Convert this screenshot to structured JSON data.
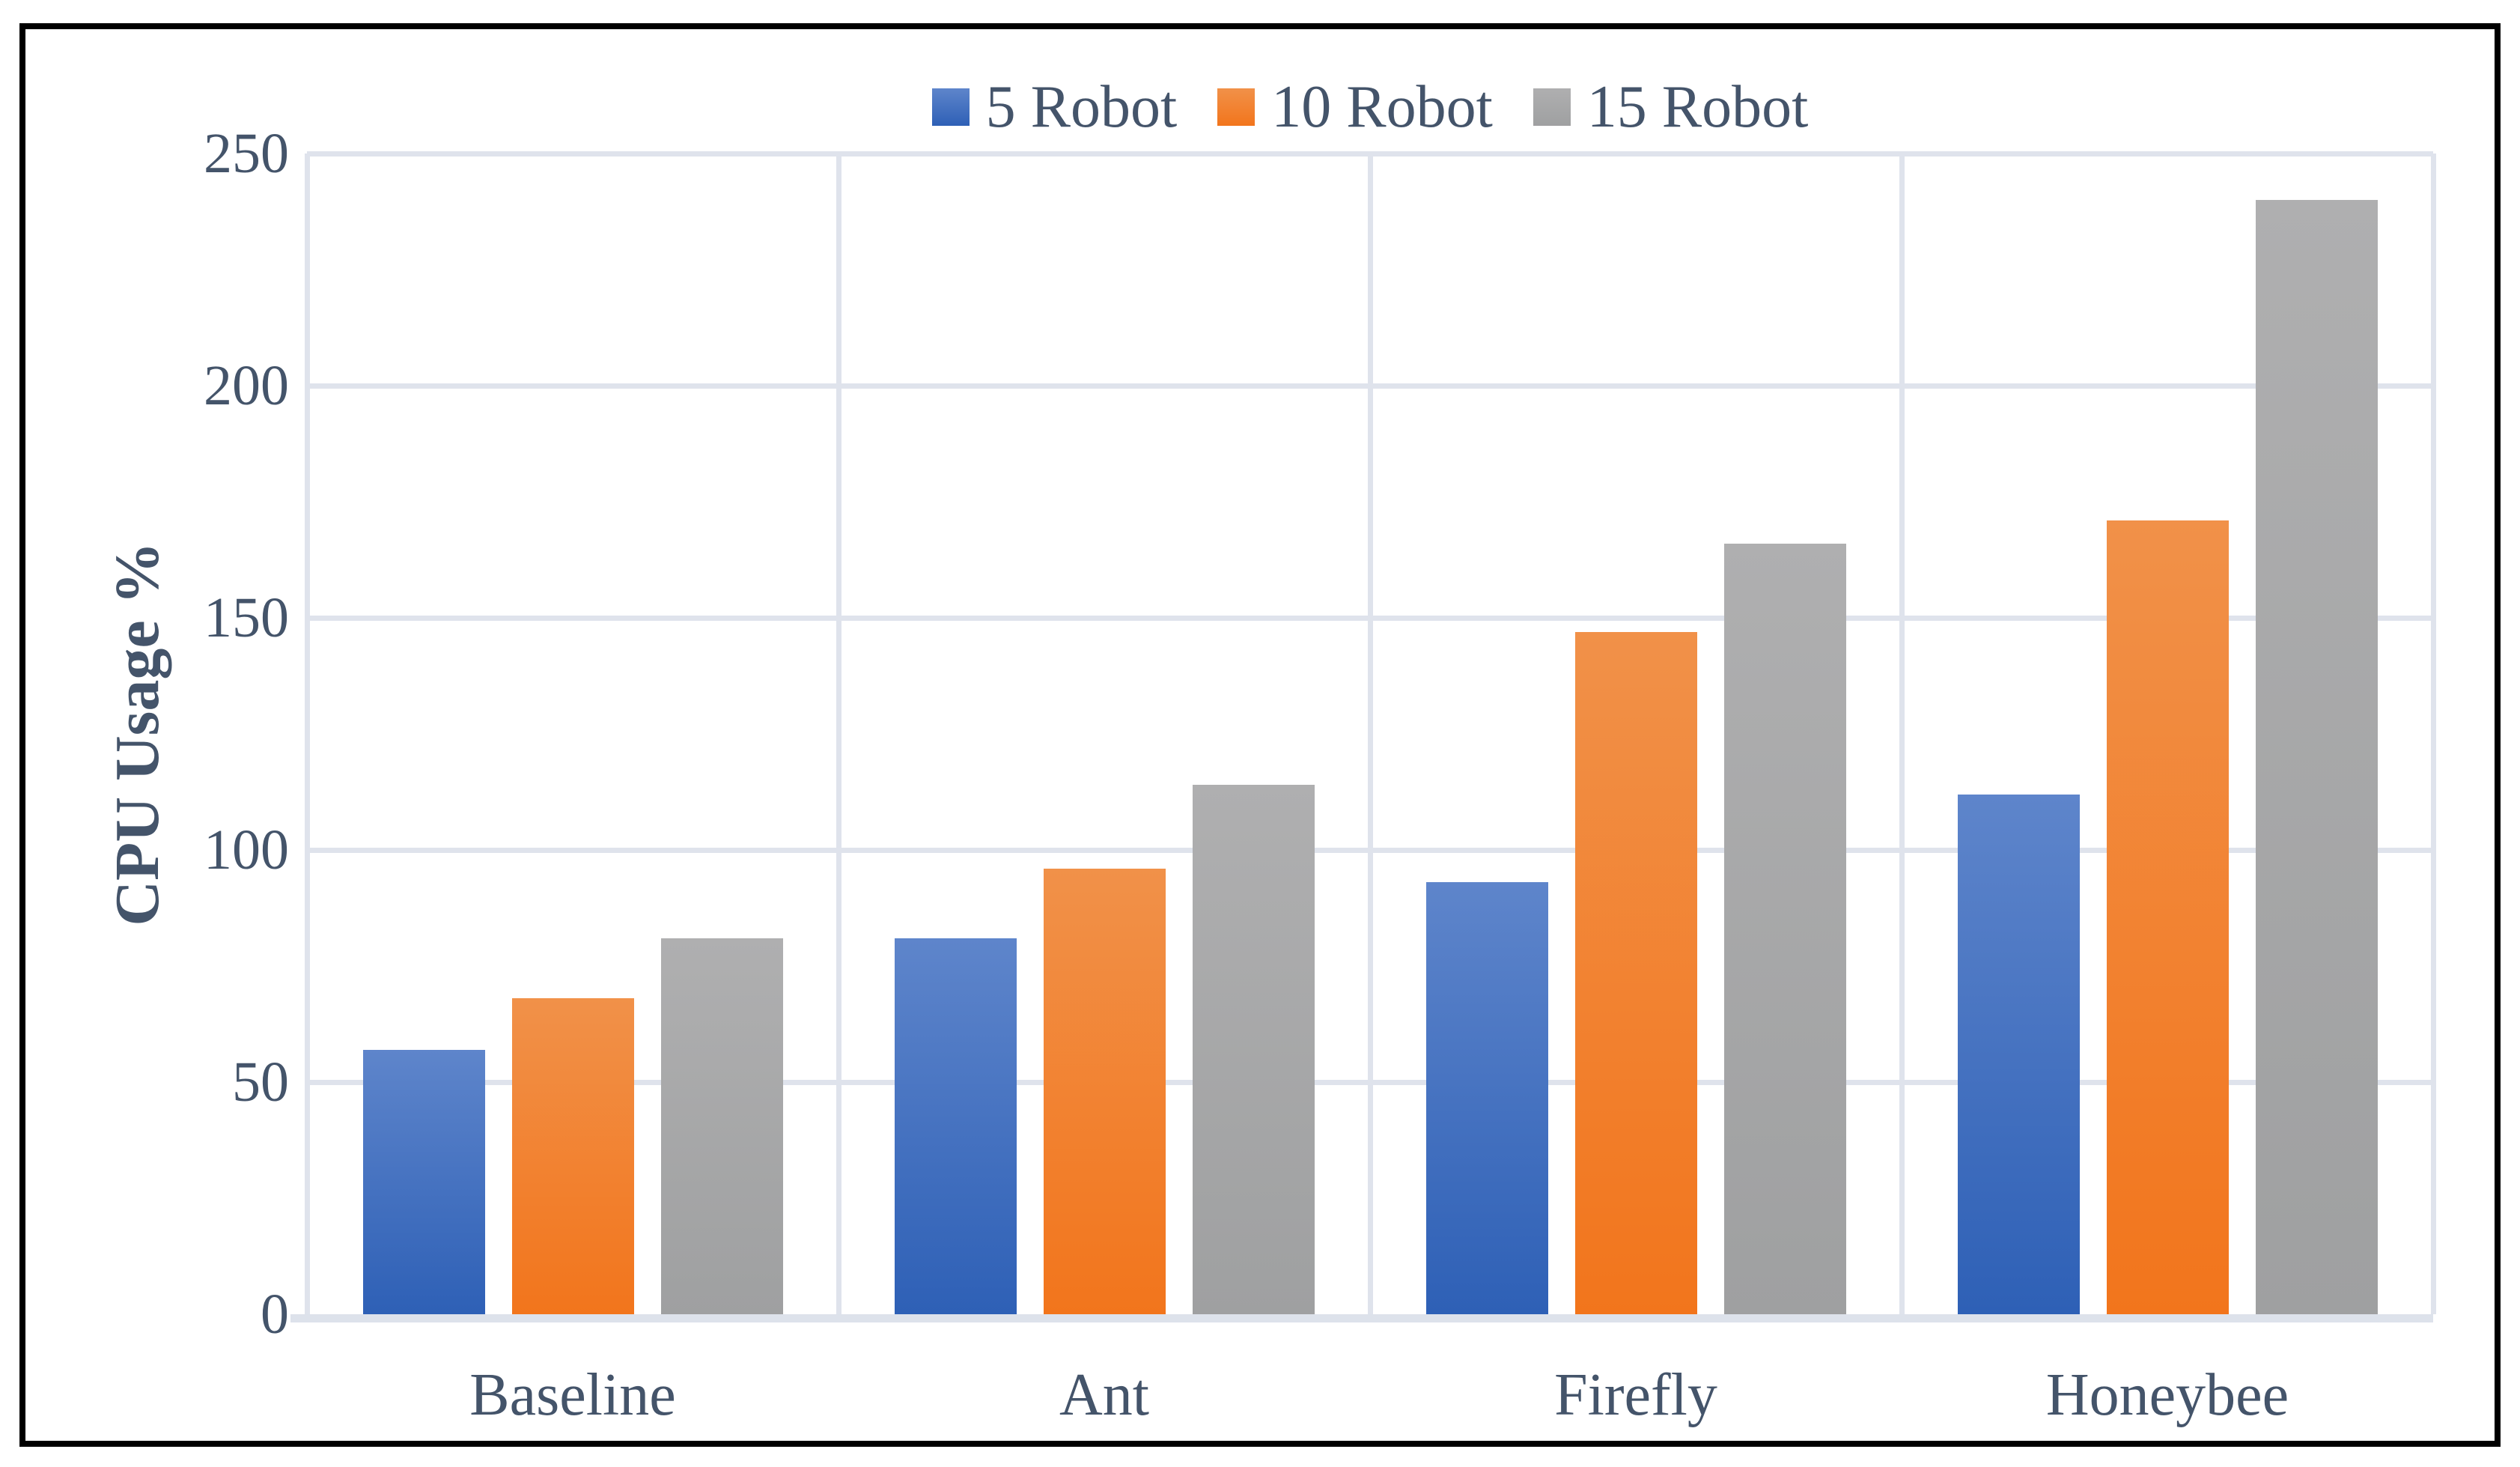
{
  "figure": {
    "frame_color": "#000000",
    "background_color": "#ffffff",
    "text_color": "#44546A",
    "gridline_color": "#DFE3EC",
    "axis_line_color": "#DDE2EB"
  },
  "chart_data": {
    "type": "bar",
    "title": "",
    "xlabel": "",
    "ylabel": "CPU Usage %",
    "categories": [
      "Baseline",
      "Ant",
      "Firefly",
      "Honeybee"
    ],
    "series": [
      {
        "name": "5 Robot",
        "color": "#4472C4",
        "gradient_top": "#5E85CB",
        "gradient_bottom": "#2E60B6",
        "values": [
          57,
          81,
          93,
          112
        ]
      },
      {
        "name": "10 Robot",
        "color": "#ED7D31",
        "gradient_top": "#F19149",
        "gradient_bottom": "#F2751C",
        "values": [
          68,
          96,
          147,
          171
        ]
      },
      {
        "name": "15 Robot",
        "color": "#A5A5A5",
        "gradient_top": "#AFAFB0",
        "gradient_bottom": "#9FA0A1",
        "values": [
          81,
          114,
          166,
          240
        ]
      }
    ],
    "ylim": [
      0,
      250
    ],
    "yticks": [
      0,
      50,
      100,
      150,
      200,
      250
    ],
    "grid": true,
    "legend_position": "top"
  }
}
